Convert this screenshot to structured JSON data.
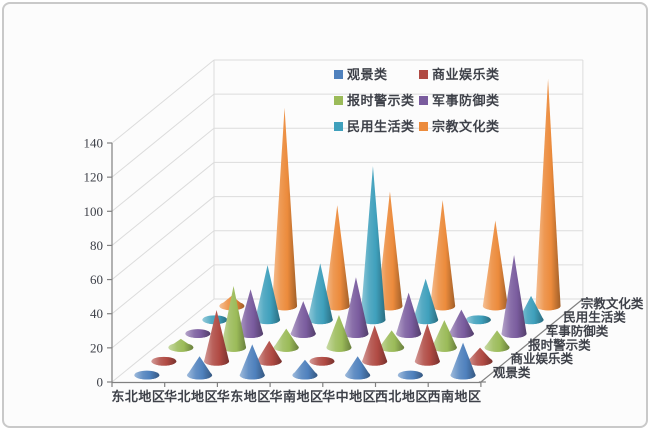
{
  "figure": {
    "background": "#fcfcfc",
    "border_color": "#c9c9c9",
    "title": ""
  },
  "chart_data": {
    "type": "bar",
    "variant": "3d-cone",
    "title": "",
    "xlabel": "",
    "ylabel": "",
    "categories": [
      "东北地区",
      "华北地区",
      "华东地区",
      "华南地区",
      "华中地区",
      "西北地区",
      "西南地区"
    ],
    "series": [
      {
        "name": "观景类",
        "color": "#4f81bd",
        "values": [
          1,
          11,
          18,
          9,
          11,
          2,
          19
        ]
      },
      {
        "name": "商业娱乐类",
        "color": "#b04a43",
        "values": [
          2,
          30,
          12,
          2,
          21,
          22,
          8
        ]
      },
      {
        "name": "报时警示类",
        "color": "#9bbb59",
        "values": [
          5,
          36,
          11,
          19,
          10,
          16,
          10
        ]
      },
      {
        "name": "军事防御类",
        "color": "#7a5c9e",
        "values": [
          2,
          26,
          19,
          33,
          24,
          14,
          46
        ]
      },
      {
        "name": "民用生活类",
        "color": "#3fa0bc",
        "values": [
          1,
          32,
          33,
          90,
          24,
          2,
          14
        ]
      },
      {
        "name": "宗教文化类",
        "color": "#ec8b3c",
        "values": [
          6,
          116,
          59,
          67,
          62,
          50,
          133
        ]
      }
    ],
    "depth_axis_labels": [
      "观景类",
      "商业娱乐类",
      "报时警示类",
      "军事防御类",
      "民用生活类",
      "宗教文化类"
    ],
    "yticks": [
      0,
      20,
      40,
      60,
      80,
      100,
      120,
      140
    ],
    "ylim": [
      0,
      140
    ],
    "grid": true,
    "legend_position": "top-center",
    "legend_columns": 2,
    "legend_order": [
      "观景类",
      "商业娱乐类",
      "报时警示类",
      "军事防御类",
      "民用生活类",
      "宗教文化类"
    ],
    "axis_color": "#808080",
    "grid_color": "#dcdcdc",
    "text_color": "#3e4149"
  }
}
